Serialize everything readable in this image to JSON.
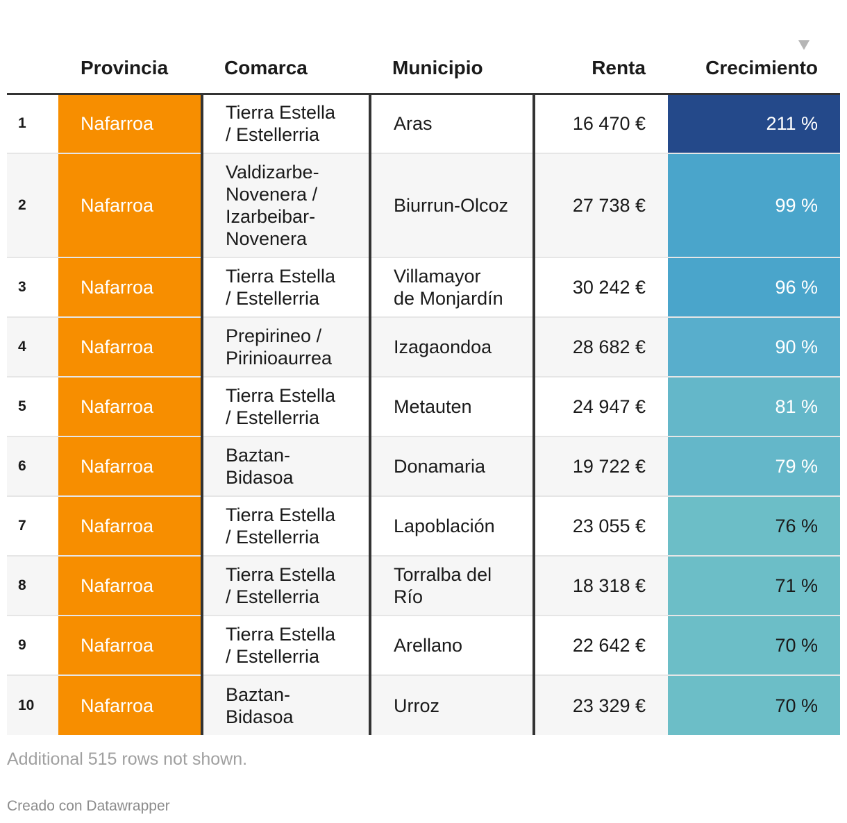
{
  "chart_data": {
    "type": "table",
    "columns": [
      "",
      "Provincia",
      "Comarca",
      "Municipio",
      "Renta",
      "Crecimiento"
    ],
    "sorted_by": "Crecimiento",
    "rows": [
      {
        "rank": "1",
        "provincia": "Nafarroa",
        "comarca": "Tierra Estella / Estellerria",
        "comarca_lines": [
          "Tierra Estella",
          "/ Estellerria"
        ],
        "municipio": "Aras",
        "municipio_lines": [
          "Aras"
        ],
        "renta": "16 470 €",
        "crecimiento": "211 %",
        "crecimiento_value": 211
      },
      {
        "rank": "2",
        "provincia": "Nafarroa",
        "comarca": "Valdizarbe-Novenera / Izarbeibar-Novenera",
        "comarca_lines": [
          "Valdizarbe-",
          "Novenera /",
          "Izarbeibar-",
          "Novenera"
        ],
        "municipio": "Biurrun-Olcoz",
        "municipio_lines": [
          "Biurrun-Olcoz"
        ],
        "renta": "27 738 €",
        "crecimiento": "99 %",
        "crecimiento_value": 99
      },
      {
        "rank": "3",
        "provincia": "Nafarroa",
        "comarca": "Tierra Estella / Estellerria",
        "comarca_lines": [
          "Tierra Estella",
          "/ Estellerria"
        ],
        "municipio": "Villamayor de Monjardín",
        "municipio_lines": [
          "Villamayor",
          "de Monjardín"
        ],
        "renta": "30 242 €",
        "crecimiento": "96 %",
        "crecimiento_value": 96
      },
      {
        "rank": "4",
        "provincia": "Nafarroa",
        "comarca": "Prepirineo / Pirinioaurrea",
        "comarca_lines": [
          "Prepirineo /",
          "Pirinioaurrea"
        ],
        "municipio": "Izagaondoa",
        "municipio_lines": [
          "Izagaondoa"
        ],
        "renta": "28 682 €",
        "crecimiento": "90 %",
        "crecimiento_value": 90
      },
      {
        "rank": "5",
        "provincia": "Nafarroa",
        "comarca": "Tierra Estella / Estellerria",
        "comarca_lines": [
          "Tierra Estella",
          "/ Estellerria"
        ],
        "municipio": "Metauten",
        "municipio_lines": [
          "Metauten"
        ],
        "renta": "24 947 €",
        "crecimiento": "81 %",
        "crecimiento_value": 81
      },
      {
        "rank": "6",
        "provincia": "Nafarroa",
        "comarca": "Baztan-Bidasoa",
        "comarca_lines": [
          "Baztan-",
          "Bidasoa"
        ],
        "municipio": "Donamaria",
        "municipio_lines": [
          "Donamaria"
        ],
        "renta": "19 722 €",
        "crecimiento": "79 %",
        "crecimiento_value": 79
      },
      {
        "rank": "7",
        "provincia": "Nafarroa",
        "comarca": "Tierra Estella / Estellerria",
        "comarca_lines": [
          "Tierra Estella",
          "/ Estellerria"
        ],
        "municipio": "Lapoblación",
        "municipio_lines": [
          "Lapoblación"
        ],
        "renta": "23 055 €",
        "crecimiento": "76 %",
        "crecimiento_value": 76
      },
      {
        "rank": "8",
        "provincia": "Nafarroa",
        "comarca": "Tierra Estella / Estellerria",
        "comarca_lines": [
          "Tierra Estella",
          "/ Estellerria"
        ],
        "municipio": "Torralba del Río",
        "municipio_lines": [
          "Torralba del",
          "Río"
        ],
        "renta": "18 318 €",
        "crecimiento": "71 %",
        "crecimiento_value": 71
      },
      {
        "rank": "9",
        "provincia": "Nafarroa",
        "comarca": "Tierra Estella / Estellerria",
        "comarca_lines": [
          "Tierra Estella",
          "/ Estellerria"
        ],
        "municipio": "Arellano",
        "municipio_lines": [
          "Arellano"
        ],
        "renta": "22 642 €",
        "crecimiento": "70 %",
        "crecimiento_value": 70
      },
      {
        "rank": "10",
        "provincia": "Nafarroa",
        "comarca": "Baztan-Bidasoa",
        "comarca_lines": [
          "Baztan-",
          "Bidasoa"
        ],
        "municipio": "Urroz",
        "municipio_lines": [
          "Urroz"
        ],
        "renta": "23 329 €",
        "crecimiento": "70 %",
        "crecimiento_value": 70
      }
    ],
    "colors": {
      "provincia_bg": "#f78e00",
      "growth_scale": [
        "#6cbec7",
        "#64b7c9",
        "#58aecc",
        "#4aa5cb",
        "#24498a"
      ]
    }
  },
  "footer": {
    "note": "Additional 515 rows not shown.",
    "credit": "Creado con Datawrapper"
  }
}
